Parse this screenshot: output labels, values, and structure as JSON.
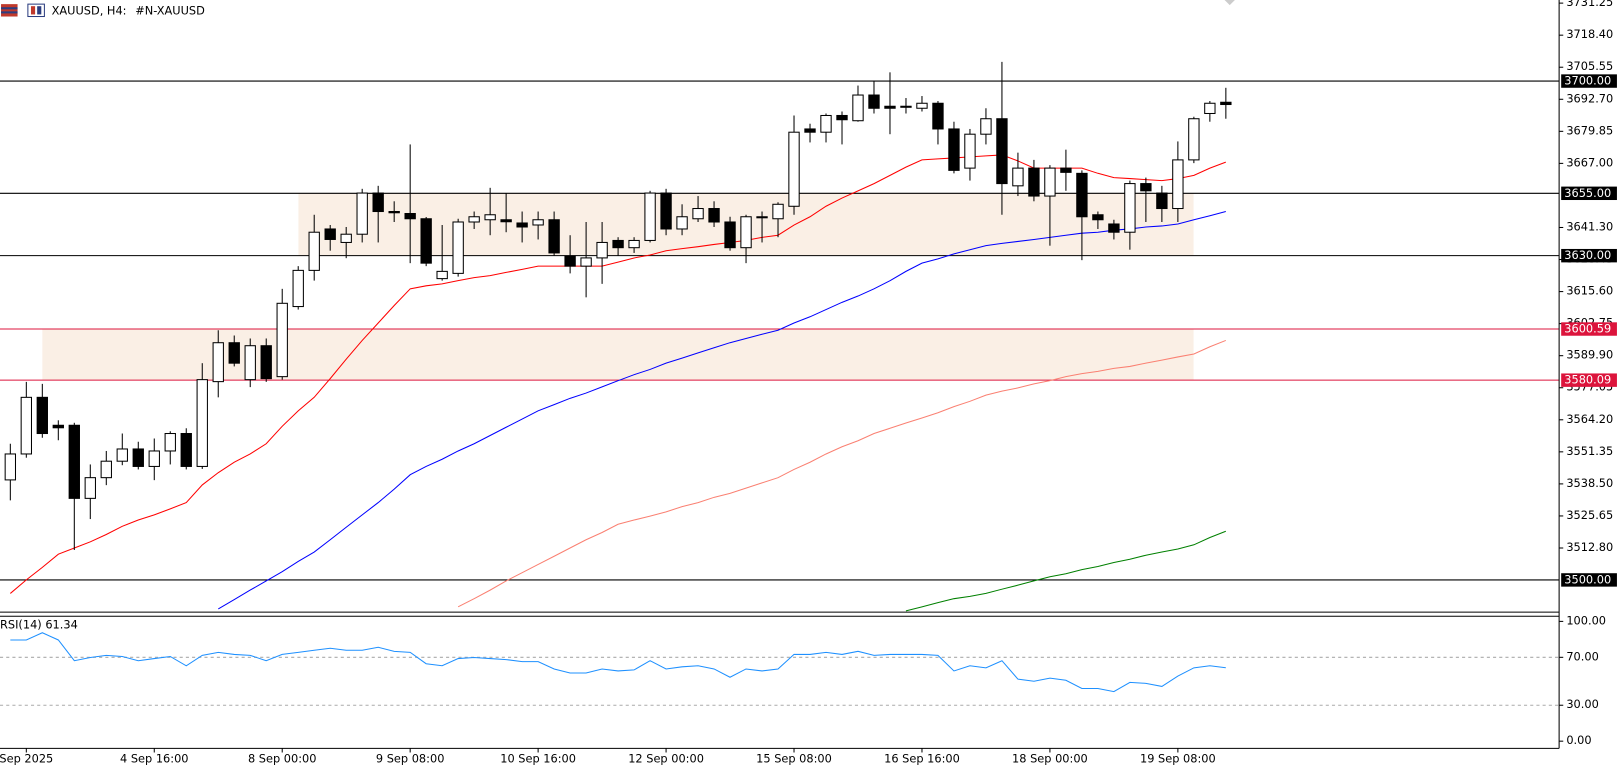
{
  "chart_data": [
    {
      "type": "candlestick",
      "title": "XAUUSD, H4:",
      "subtitle": "#N-XAUUSD",
      "x": [
        null,
        "Sep 2025",
        null,
        null,
        null,
        null,
        null,
        null,
        null,
        "4 Sep 16:00",
        null,
        null,
        null,
        null,
        null,
        null,
        null,
        "8 Sep 00:00",
        null,
        null,
        null,
        null,
        null,
        null,
        null,
        "9 Sep 08:00",
        null,
        null,
        null,
        null,
        null,
        null,
        null,
        "10 Sep 16:00",
        null,
        null,
        null,
        null,
        null,
        null,
        null,
        "12 Sep 00:00",
        null,
        null,
        null,
        null,
        null,
        null,
        null,
        "15 Sep 08:00",
        null,
        null,
        null,
        null,
        null,
        null,
        null,
        "16 Sep 16:00",
        null,
        null,
        null,
        null,
        null,
        null,
        null,
        "18 Sep 00:00",
        null,
        null,
        null,
        null,
        null,
        null,
        null,
        "19 Sep 08:00",
        null,
        null,
        null
      ],
      "open": [
        3540.1,
        3550.5,
        3573.2,
        3562.0,
        3562.0,
        3532.7,
        3541.0,
        3547.6,
        3552.5,
        3545.5,
        3551.7,
        3558.7,
        3545.5,
        3579.5,
        3595.1,
        3580.3,
        3593.9,
        3581.5,
        3609.6,
        3624.1,
        3640.7,
        3635.3,
        3638.6,
        3655.1,
        3647.7,
        3646.9,
        3644.8,
        3620.8,
        3622.9,
        3643.5,
        3644.4,
        3644.4,
        3643.1,
        3642.3,
        3644.4,
        3629.9,
        3625.8,
        3629.1,
        3636.1,
        3633.2,
        3636.1,
        3655.1,
        3640.7,
        3644.8,
        3648.9,
        3643.5,
        3633.2,
        3645.2,
        3644.8,
        3649.8,
        3680.8,
        3679.5,
        3686.2,
        3684.1,
        3694.4,
        3689.9,
        3689.5,
        3689.1,
        3691.1,
        3680.8,
        3665.1,
        3678.7,
        3684.9,
        3658.0,
        3665.1,
        3653.9,
        3665.1,
        3663.0,
        3646.4,
        3642.7,
        3639.4,
        3658.9,
        3655.1,
        3648.9,
        3668.4,
        3687.0,
        3691.5
      ],
      "high": [
        3554.6,
        3579.4,
        3578.6,
        3564.0,
        3563.0,
        3546.3,
        3551.7,
        3558.7,
        3555.4,
        3556.7,
        3559.6,
        3560.8,
        3586.9,
        3600.1,
        3598.0,
        3596.8,
        3596.8,
        3616.7,
        3625.8,
        3646.4,
        3642.3,
        3641.5,
        3656.8,
        3658.0,
        3651.8,
        3674.6,
        3645.5,
        3642.3,
        3644.8,
        3647.7,
        3657.2,
        3655.1,
        3647.7,
        3647.7,
        3647.7,
        3638.2,
        3643.5,
        3643.5,
        3637.4,
        3637.4,
        3656.0,
        3656.8,
        3650.6,
        3653.9,
        3651.8,
        3645.6,
        3646.4,
        3647.7,
        3651.4,
        3686.2,
        3682.9,
        3687.0,
        3687.8,
        3698.2,
        3700.2,
        3703.5,
        3693.2,
        3694.0,
        3692.0,
        3683.7,
        3680.8,
        3689.1,
        3707.7,
        3671.3,
        3668.4,
        3666.3,
        3672.5,
        3664.2,
        3647.7,
        3644.4,
        3660.1,
        3661.3,
        3658.0,
        3675.8,
        3685.7,
        3692.0,
        3697.3
      ],
      "low": [
        3531.9,
        3549.0,
        3557.0,
        3556.0,
        3512.0,
        3524.4,
        3538.0,
        3546.0,
        3544.3,
        3540.0,
        3546.3,
        3544.3,
        3544.5,
        3573.2,
        3585.6,
        3577.3,
        3579.4,
        3580.3,
        3608.4,
        3620.0,
        3632.0,
        3629.0,
        3635.3,
        3635.3,
        3643.5,
        3627.0,
        3625.8,
        3620.0,
        3621.6,
        3640.7,
        3638.2,
        3639.4,
        3635.3,
        3636.5,
        3629.9,
        3622.9,
        3613.3,
        3618.7,
        3629.9,
        3631.1,
        3635.3,
        3638.2,
        3638.2,
        3643.5,
        3641.5,
        3632.0,
        3627.0,
        3635.3,
        3637.4,
        3646.4,
        3675.4,
        3675.4,
        3674.6,
        3683.7,
        3687.0,
        3678.7,
        3687.0,
        3687.8,
        3674.6,
        3663.0,
        3660.1,
        3674.6,
        3646.4,
        3653.9,
        3651.8,
        3634.0,
        3656.0,
        3628.2,
        3640.7,
        3636.5,
        3632.4,
        3643.5,
        3643.5,
        3643.5,
        3667.1,
        3683.7,
        3684.9
      ],
      "close": [
        3550.5,
        3573.2,
        3558.7,
        3561.0,
        3532.7,
        3541.0,
        3547.6,
        3552.5,
        3545.5,
        3551.7,
        3558.7,
        3545.5,
        3580.3,
        3595.1,
        3586.9,
        3593.9,
        3580.7,
        3610.9,
        3624.1,
        3639.4,
        3636.5,
        3638.6,
        3655.1,
        3647.7,
        3647.2,
        3644.8,
        3627.0,
        3623.7,
        3643.5,
        3645.6,
        3646.4,
        3643.6,
        3641.5,
        3644.4,
        3631.1,
        3625.8,
        3629.1,
        3635.3,
        3633.2,
        3636.1,
        3655.1,
        3640.7,
        3645.6,
        3648.9,
        3643.5,
        3633.2,
        3645.6,
        3645.6,
        3650.6,
        3679.5,
        3679.5,
        3686.2,
        3684.5,
        3694.4,
        3689.1,
        3689.1,
        3689.9,
        3691.1,
        3680.8,
        3664.2,
        3678.7,
        3684.9,
        3658.9,
        3665.1,
        3653.9,
        3665.1,
        3663.4,
        3645.6,
        3644.4,
        3639.4,
        3658.9,
        3656.0,
        3648.9,
        3668.4,
        3684.9,
        3691.1,
        3690.6
      ],
      "up_color": "#ffffff",
      "down_color": "#000000",
      "series": [
        {
          "color": "#ff0000",
          "values": [
            3494.6,
            3500.0,
            3505.0,
            3510.3,
            3512.8,
            3515.3,
            3518.2,
            3521.5,
            3524.0,
            3526.1,
            3528.5,
            3531.0,
            3538.1,
            3543.0,
            3547.2,
            3550.5,
            3554.6,
            3561.6,
            3567.8,
            3573.2,
            3580.7,
            3588.5,
            3596.0,
            3603.0,
            3610.0,
            3616.7,
            3617.9,
            3618.7,
            3620.0,
            3621.2,
            3622.0,
            3623.3,
            3624.5,
            3625.8,
            3625.8,
            3625.8,
            3625.8,
            3625.8,
            3627.4,
            3629.1,
            3630.3,
            3632.0,
            3632.8,
            3633.6,
            3634.5,
            3635.3,
            3636.1,
            3637.3,
            3638.2,
            3642.3,
            3645.6,
            3649.8,
            3653.1,
            3656.0,
            3658.9,
            3662.2,
            3665.5,
            3668.4,
            3668.8,
            3669.2,
            3669.6,
            3670.0,
            3670.4,
            3668.0,
            3665.1,
            3665.1,
            3665.1,
            3665.1,
            3663.0,
            3661.3,
            3660.9,
            3660.5,
            3660.1,
            3660.9,
            3662.2,
            3665.1,
            3667.5
          ]
        },
        {
          "color": "#0000ff",
          "values": [
            null,
            null,
            null,
            null,
            null,
            null,
            null,
            null,
            null,
            null,
            null,
            null,
            null,
            3488.4,
            3492.1,
            3495.9,
            3499.6,
            3503.3,
            3507.4,
            3511.2,
            3516.1,
            3521.1,
            3526.1,
            3531.0,
            3536.4,
            3542.2,
            3545.5,
            3548.4,
            3551.7,
            3554.6,
            3557.9,
            3561.2,
            3564.5,
            3567.8,
            3570.3,
            3572.8,
            3574.9,
            3577.4,
            3579.9,
            3582.3,
            3584.4,
            3586.9,
            3588.9,
            3591.0,
            3593.1,
            3595.1,
            3596.8,
            3598.5,
            3600.1,
            3603.0,
            3605.5,
            3608.4,
            3611.3,
            3613.8,
            3616.7,
            3620.0,
            3623.7,
            3627.0,
            3628.7,
            3630.7,
            3632.4,
            3634.0,
            3634.9,
            3635.7,
            3636.5,
            3637.3,
            3638.2,
            3639.0,
            3639.4,
            3640.2,
            3640.7,
            3641.5,
            3641.9,
            3642.7,
            3644.4,
            3646.0,
            3647.7
          ]
        },
        {
          "color": "#fa8072",
          "values": [
            null,
            null,
            null,
            null,
            null,
            null,
            null,
            null,
            null,
            null,
            null,
            null,
            null,
            null,
            null,
            null,
            null,
            null,
            null,
            null,
            null,
            null,
            null,
            null,
            null,
            null,
            null,
            null,
            3489.2,
            3492.5,
            3495.9,
            3499.6,
            3502.9,
            3506.2,
            3509.5,
            3512.8,
            3516.1,
            3519.0,
            3522.3,
            3524.0,
            3525.6,
            3527.3,
            3529.4,
            3531.0,
            3533.1,
            3534.7,
            3536.8,
            3538.9,
            3541.0,
            3544.3,
            3547.2,
            3550.5,
            3553.4,
            3555.8,
            3558.7,
            3560.8,
            3562.9,
            3564.9,
            3567.0,
            3569.5,
            3571.6,
            3574.1,
            3575.7,
            3577.0,
            3578.6,
            3579.9,
            3581.5,
            3582.7,
            3583.6,
            3584.8,
            3585.6,
            3586.9,
            3588.1,
            3589.4,
            3590.6,
            3593.5,
            3596.0
          ]
        },
        {
          "color": "#008000",
          "values": [
            null,
            null,
            null,
            null,
            null,
            null,
            null,
            null,
            null,
            null,
            null,
            null,
            null,
            null,
            null,
            null,
            null,
            null,
            null,
            null,
            null,
            null,
            null,
            null,
            null,
            null,
            null,
            null,
            null,
            null,
            null,
            null,
            null,
            null,
            null,
            null,
            null,
            null,
            null,
            null,
            null,
            null,
            null,
            null,
            null,
            null,
            null,
            null,
            null,
            null,
            null,
            null,
            null,
            null,
            null,
            null,
            3487.6,
            3489.2,
            3490.9,
            3492.5,
            3493.4,
            3494.6,
            3496.3,
            3497.9,
            3499.6,
            3501.3,
            3502.5,
            3504.1,
            3505.4,
            3507.0,
            3508.3,
            3509.9,
            3511.2,
            3512.4,
            3514.1,
            3517.0,
            3519.5
          ]
        }
      ],
      "levels": [
        {
          "value": 3700,
          "label": "3700.00",
          "color": "#000000"
        },
        {
          "value": 3655,
          "label": "3655.00",
          "color": "#000000"
        },
        {
          "value": 3630,
          "label": "3630.00",
          "color": "#000000"
        },
        {
          "value": 3600.59,
          "label": "3600.59",
          "color": "#dc143c"
        },
        {
          "value": 3580.09,
          "label": "3580.09",
          "color": "#dc143c"
        },
        {
          "value": 3500,
          "label": "3500.00",
          "color": "#000000"
        }
      ],
      "ylim": [
        3487.1,
        3732.5
      ],
      "yticks": [
        3731.25,
        {
          "value": 3718.4,
          "label": "3718.40"
        },
        3705.55,
        {
          "value": 3692.7,
          "label": "3692.70"
        },
        3679.85,
        {
          "value": 3667,
          "label": "3667.00"
        },
        {
          "value": 3641.3,
          "label": "3641.30"
        },
        3628.45,
        {
          "value": 3615.6,
          "label": "3615.60"
        },
        3602.75,
        {
          "value": 3589.9,
          "label": "3589.90"
        },
        3577.05,
        {
          "value": 3564.2,
          "label": "3564.20"
        },
        3551.35,
        {
          "value": 3538.5,
          "label": "3538.50"
        },
        3525.65,
        {
          "value": 3512.8,
          "label": "3512.80"
        }
      ]
    },
    {
      "type": "line",
      "title": "RSI(14) 61.34",
      "color": "#1e90ff",
      "values": [
        84.5,
        84.5,
        90.5,
        84.5,
        67.2,
        69.8,
        71.6,
        70.7,
        67.2,
        69.0,
        70.7,
        62.9,
        71.6,
        74.1,
        72.4,
        71.6,
        67.2,
        72.4,
        74.1,
        75.9,
        77.6,
        75.9,
        75.9,
        78.4,
        75.0,
        74.1,
        64.7,
        62.9,
        69.0,
        69.8,
        69.0,
        68.1,
        66.4,
        66.4,
        60.3,
        56.9,
        56.9,
        60.3,
        58.6,
        59.5,
        67.2,
        60.3,
        62.1,
        62.9,
        60.3,
        53.4,
        60.3,
        58.6,
        60.3,
        72.4,
        72.4,
        74.1,
        72.4,
        75.0,
        71.6,
        72.4,
        72.4,
        72.4,
        71.6,
        58.6,
        62.9,
        61.2,
        67.2,
        51.7,
        50.0,
        52.6,
        50.9,
        44.0,
        44.0,
        41.4,
        49.1,
        48.3,
        45.7,
        54.3,
        61.2,
        62.9,
        61.34
      ],
      "ylim": [
        -6,
        104.3
      ],
      "yticks": [
        {
          "value": 100,
          "label": "100.00"
        },
        {
          "value": 70,
          "label": "70.00"
        },
        {
          "value": 30,
          "label": "30.00"
        },
        {
          "value": 0,
          "label": "0.00"
        }
      ]
    }
  ]
}
